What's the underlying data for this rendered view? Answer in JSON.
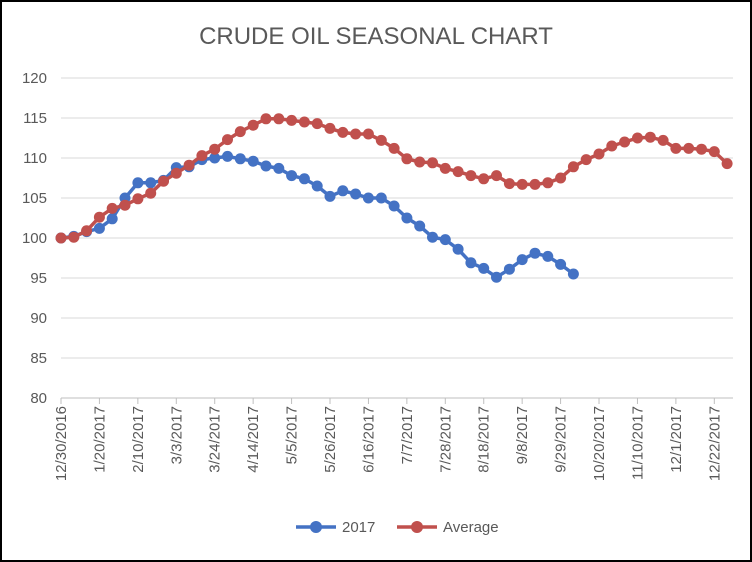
{
  "chart_data": {
    "type": "line",
    "title": "CRUDE OIL SEASONAL CHART",
    "xlabel": "",
    "ylabel": "",
    "ylim": [
      80,
      120
    ],
    "yticks": [
      80,
      85,
      90,
      95,
      100,
      105,
      110,
      115,
      120
    ],
    "grid": "horizontal",
    "legend": "bottom",
    "x_tick_labels": [
      "12/30/2016",
      "1/20/2017",
      "2/10/2017",
      "3/3/2017",
      "3/24/2017",
      "4/14/2017",
      "5/5/2017",
      "5/26/2017",
      "6/16/2017",
      "7/7/2017",
      "7/28/2017",
      "8/18/2017",
      "9/8/2017",
      "9/29/2017",
      "10/20/2017",
      "11/10/2017",
      "12/1/2017",
      "12/22/2017"
    ],
    "x_points_per_tick": 3,
    "series": [
      {
        "name": "2017",
        "color": "#4472C4",
        "values": [
          100,
          100.2,
          100.8,
          101.2,
          102.4,
          105.0,
          106.9,
          106.9,
          107.2,
          108.8,
          108.9,
          109.8,
          110.0,
          110.2,
          109.9,
          109.6,
          109.0,
          108.7,
          107.8,
          107.4,
          106.5,
          105.2,
          105.9,
          105.5,
          105.0,
          105.0,
          104.0,
          102.5,
          101.5,
          100.1,
          99.8,
          98.6,
          96.9,
          96.2,
          95.1,
          96.1,
          97.3,
          98.1,
          97.7,
          96.7,
          95.5
        ]
      },
      {
        "name": "Average",
        "color": "#C0504D",
        "values": [
          100,
          100.1,
          100.9,
          102.6,
          103.7,
          104.1,
          104.9,
          105.6,
          107.1,
          108.1,
          109.1,
          110.3,
          111.1,
          112.3,
          113.3,
          114.1,
          114.9,
          114.9,
          114.7,
          114.5,
          114.3,
          113.7,
          113.2,
          113.0,
          113.0,
          112.2,
          111.2,
          109.9,
          109.5,
          109.4,
          108.7,
          108.3,
          107.8,
          107.4,
          107.8,
          106.8,
          106.7,
          106.7,
          106.9,
          107.5,
          108.9,
          109.8,
          110.5,
          111.5,
          112.0,
          112.5,
          112.6,
          112.2,
          111.2,
          111.2,
          111.1,
          110.8,
          109.3
        ]
      }
    ]
  }
}
